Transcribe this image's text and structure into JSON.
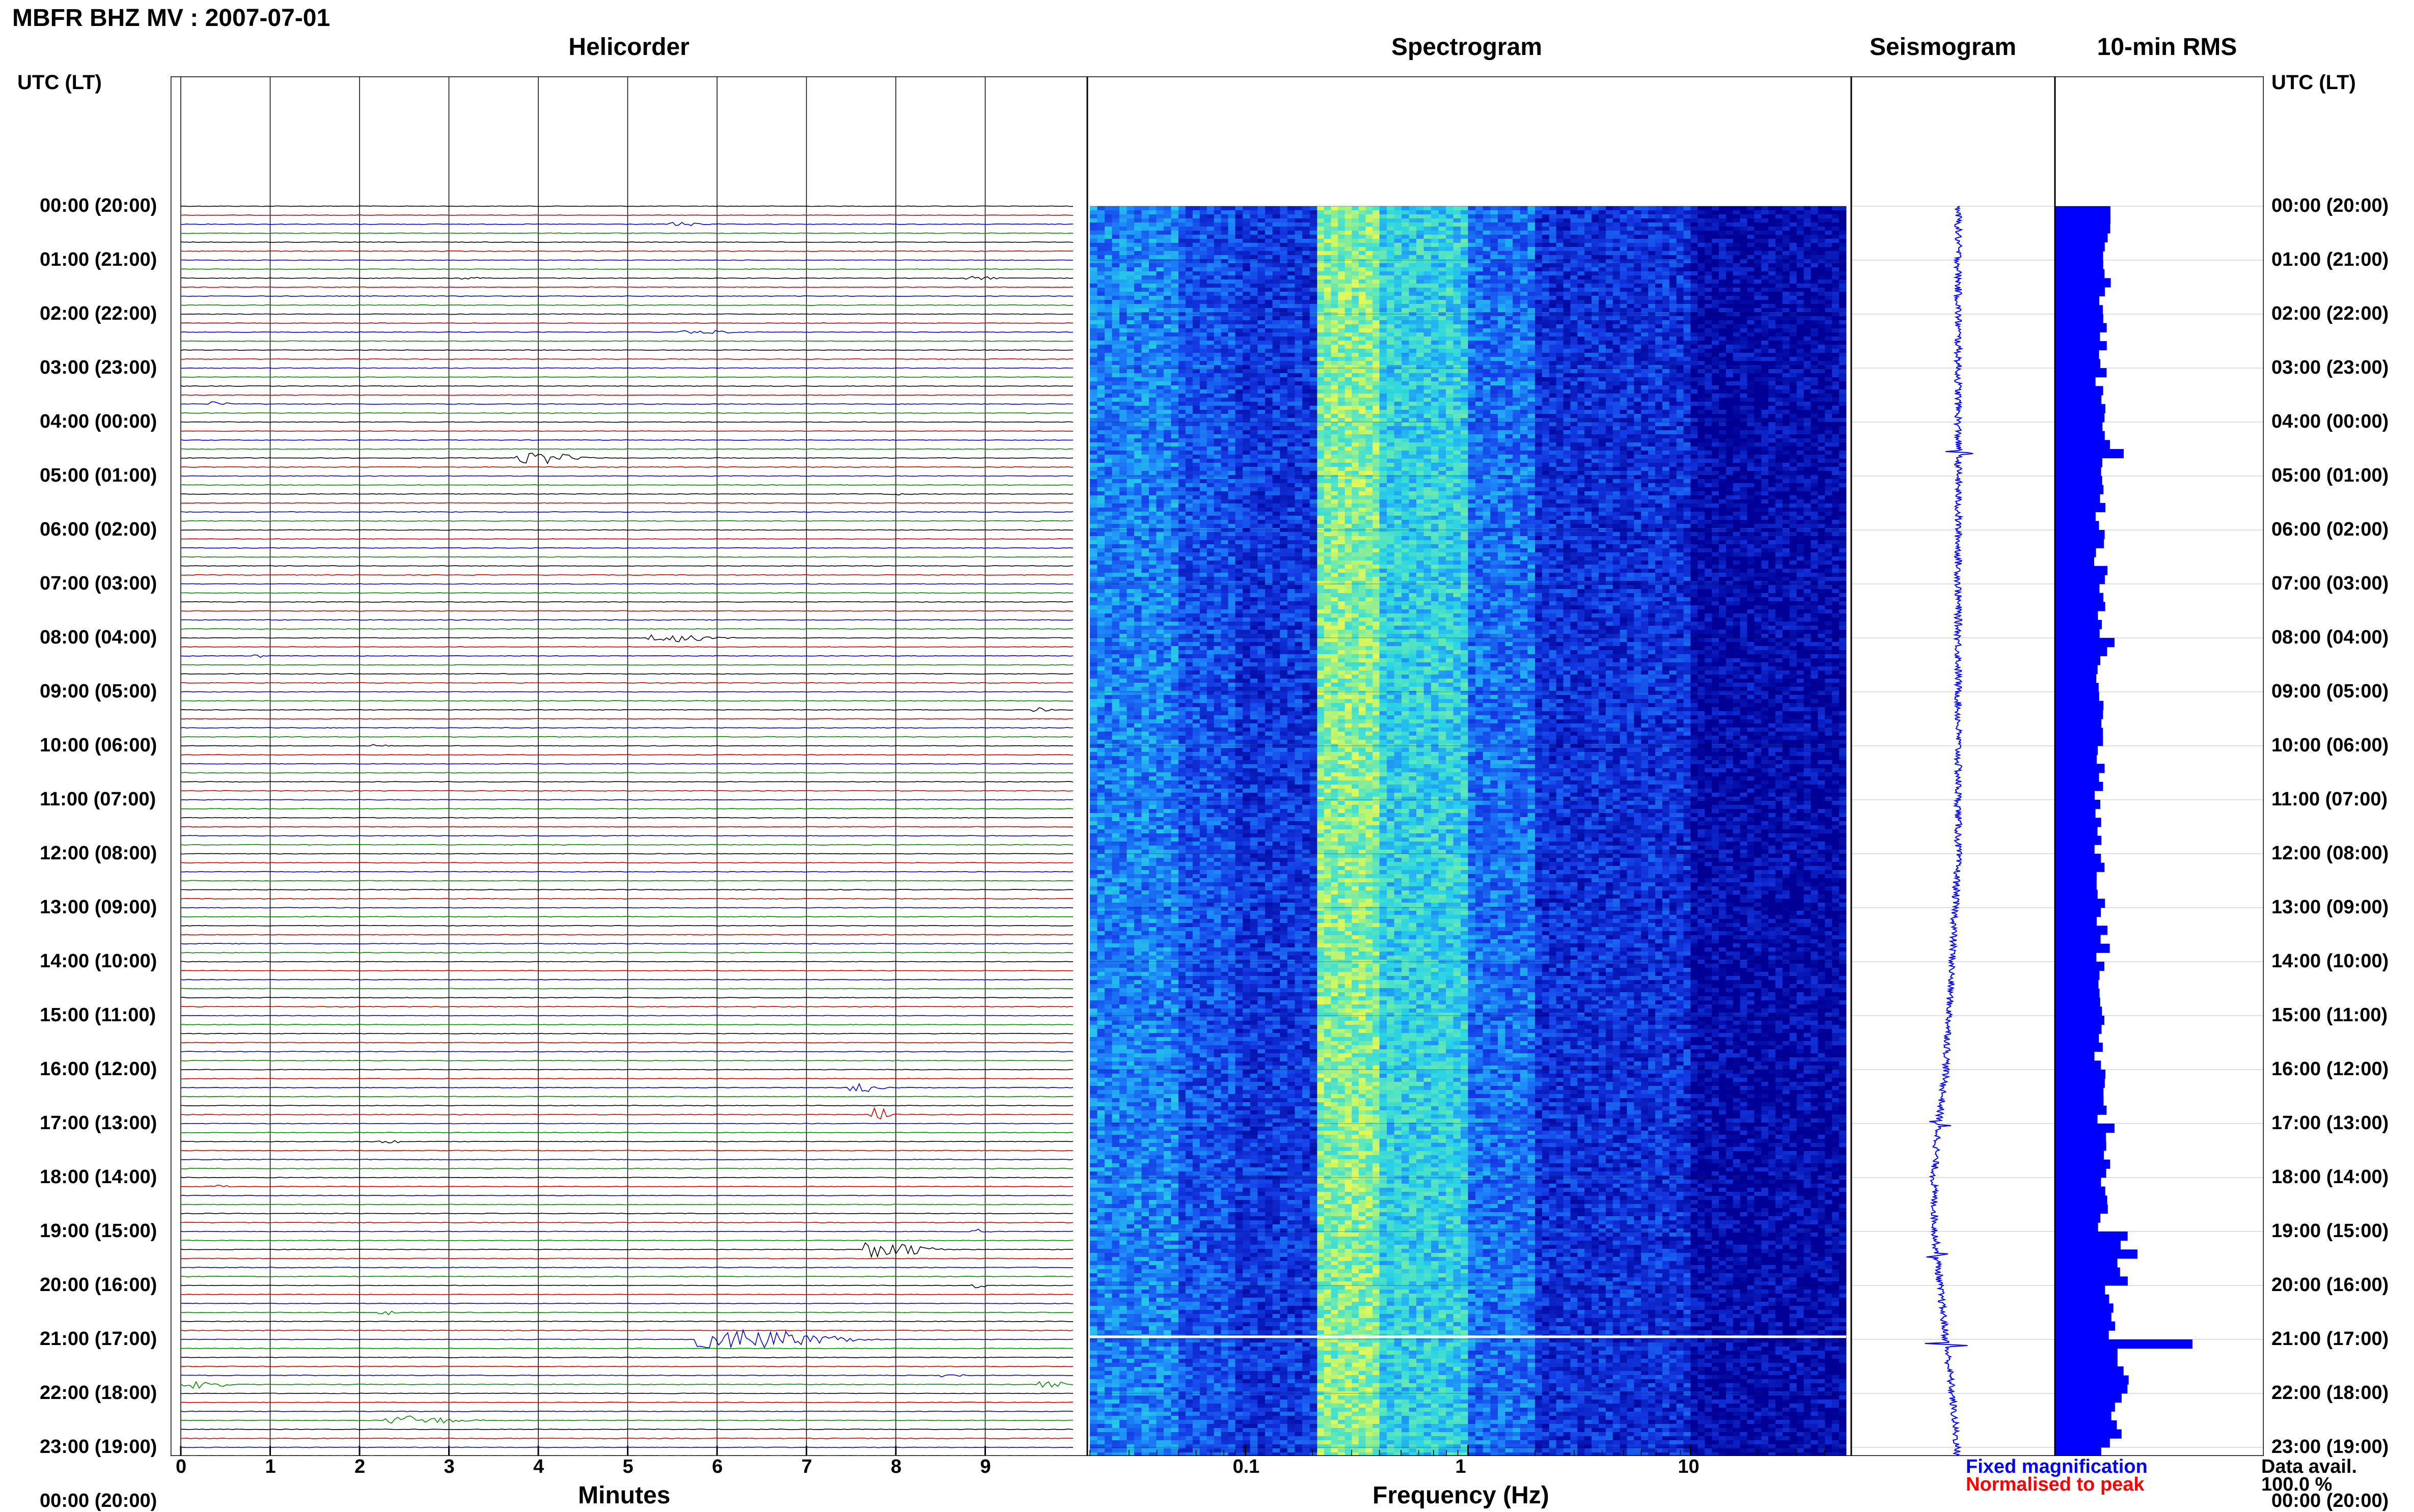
{
  "page_title": "MBFR BHZ MV : 2007-07-01",
  "utc_header_left": "UTC (LT)",
  "utc_header_right": "UTC (LT)",
  "time_labels": [
    "00:00 (20:00)",
    "01:00 (21:00)",
    "02:00 (22:00)",
    "03:00 (23:00)",
    "04:00 (00:00)",
    "05:00 (01:00)",
    "06:00 (02:00)",
    "07:00 (03:00)",
    "08:00 (04:00)",
    "09:00 (05:00)",
    "10:00 (06:00)",
    "11:00 (07:00)",
    "12:00 (08:00)",
    "13:00 (09:00)",
    "14:00 (10:00)",
    "15:00 (11:00)",
    "16:00 (12:00)",
    "17:00 (13:00)",
    "18:00 (14:00)",
    "19:00 (15:00)",
    "20:00 (16:00)",
    "21:00 (17:00)",
    "22:00 (18:00)",
    "23:00 (19:00)",
    "00:00 (20:00)"
  ],
  "legend": {
    "fixed": "Fixed magnification",
    "normalised": "Normalised to peak",
    "fixed_color": "#0000ff",
    "normalised_color": "#ff0000"
  },
  "data_avail": {
    "label": "Data avail.",
    "value": "100.0 %"
  },
  "chart_data": [
    {
      "type": "line",
      "title": "Helicorder",
      "xlabel": "Minutes",
      "ylabel": "UTC (LT)",
      "xlim": [
        0,
        10
      ],
      "x_ticks": [
        "0",
        "1",
        "2",
        "3",
        "4",
        "5",
        "6",
        "7",
        "8",
        "9"
      ],
      "rows_per_hour": 6,
      "trace_colors": [
        "#000000",
        "#cc0000",
        "#0000cc",
        "#008800"
      ],
      "events": [
        {
          "hour": 0.4,
          "minute": 5.6,
          "amplitude": 5,
          "width": 0.5
        },
        {
          "hour": 1.3,
          "minute": 3.2,
          "amplitude": 4,
          "width": 0.4
        },
        {
          "hour": 1.4,
          "minute": 8.9,
          "amplitude": 5,
          "width": 0.5
        },
        {
          "hour": 2.3,
          "minute": 5.8,
          "amplitude": 4,
          "width": 0.9
        },
        {
          "hour": 3.6,
          "minute": 0.4,
          "amplitude": 6,
          "width": 0.25
        },
        {
          "hour": 4.6,
          "minute": 4.0,
          "amplitude": 12,
          "width": 0.9
        },
        {
          "hour": 5.4,
          "minute": 8.0,
          "amplitude": 4,
          "width": 0.3
        },
        {
          "hour": 8.0,
          "minute": 5.5,
          "amplitude": 8,
          "width": 1.0
        },
        {
          "hour": 8.3,
          "minute": 0.9,
          "amplitude": 3,
          "width": 0.3
        },
        {
          "hour": 9.4,
          "minute": 9.6,
          "amplitude": 6,
          "width": 0.3
        },
        {
          "hour": 10.0,
          "minute": 2.2,
          "amplitude": 3,
          "width": 0.3
        },
        {
          "hour": 16.3,
          "minute": 7.6,
          "amplitude": 10,
          "width": 0.45
        },
        {
          "hour": 16.8,
          "minute": 7.8,
          "amplitude": 13,
          "width": 0.35
        },
        {
          "hour": 17.4,
          "minute": 2.3,
          "amplitude": 6,
          "width": 0.3
        },
        {
          "hour": 18.2,
          "minute": 0.4,
          "amplitude": 3,
          "width": 0.3
        },
        {
          "hour": 19.0,
          "minute": 8.9,
          "amplitude": 6,
          "width": 0.25
        },
        {
          "hour": 19.3,
          "minute": 7.9,
          "amplitude": 18,
          "width": 0.9
        },
        {
          "hour": 20.0,
          "minute": 8.9,
          "amplitude": 6,
          "width": 0.25
        },
        {
          "hour": 20.5,
          "minute": 2.3,
          "amplitude": 7,
          "width": 0.3
        },
        {
          "hour": 21.0,
          "minute": 6.3,
          "amplitude": 22,
          "width": 1.8
        },
        {
          "hour": 21.0,
          "minute": 7.4,
          "amplitude": 6,
          "width": 0.3
        },
        {
          "hour": 21.7,
          "minute": 8.6,
          "amplitude": 6,
          "width": 0.3
        },
        {
          "hour": 21.8,
          "minute": 9.7,
          "amplitude": 8,
          "width": 0.45
        },
        {
          "hour": 21.9,
          "minute": 0.2,
          "amplitude": 9,
          "width": 0.6
        },
        {
          "hour": 22.5,
          "minute": 2.6,
          "amplitude": 9,
          "width": 1.1
        },
        {
          "hour": 23.3,
          "minute": 7.4,
          "amplitude": 10,
          "width": 0.3
        }
      ]
    },
    {
      "type": "heatmap",
      "title": "Spectrogram",
      "xlabel": "Frequency (Hz)",
      "ylabel": "UTC (LT)",
      "x_scale": "log",
      "xlim": [
        0.02,
        50
      ],
      "x_ticks": [
        "0.1",
        "1",
        "10"
      ],
      "bands": [
        {
          "from": 0.02,
          "to": 0.05,
          "level": 0.42
        },
        {
          "from": 0.05,
          "to": 0.09,
          "level": 0.3
        },
        {
          "from": 0.09,
          "to": 0.21,
          "level": 0.22
        },
        {
          "from": 0.21,
          "to": 0.4,
          "level": 0.82
        },
        {
          "from": 0.4,
          "to": 1.0,
          "level": 0.62
        },
        {
          "from": 1.0,
          "to": 2.0,
          "level": 0.38
        },
        {
          "from": 2.0,
          "to": 10.0,
          "level": 0.2
        },
        {
          "from": 10.0,
          "to": 50.0,
          "level": 0.05
        }
      ],
      "gap_hour": 20.95
    },
    {
      "type": "line",
      "title": "Seismogram",
      "ylabel": "UTC (LT)",
      "trend_hours": [
        0,
        4,
        8,
        12,
        16,
        17,
        18,
        19,
        20,
        21,
        22,
        23,
        24
      ],
      "trend_offset": [
        0.0,
        0.0,
        0.0,
        0.0,
        -0.2,
        -0.32,
        -0.4,
        -0.38,
        -0.3,
        -0.2,
        -0.1,
        -0.02,
        0.0
      ],
      "spikes": [
        {
          "hour": 4.55,
          "amplitude": 0.7
        },
        {
          "hour": 17.0,
          "amplitude": 0.5
        },
        {
          "hour": 19.45,
          "amplitude": 0.5
        },
        {
          "hour": 21.1,
          "amplitude": 0.8
        }
      ]
    },
    {
      "type": "bar",
      "title": "10-min RMS",
      "ylabel": "UTC (LT)",
      "hour_values": [
        1.2,
        1.1,
        1.0,
        1.0,
        1.1,
        1.0,
        1.0,
        1.0,
        1.0,
        1.0,
        1.0,
        1.0,
        1.05,
        1.05,
        1.0,
        1.0,
        1.05,
        1.2,
        1.1,
        1.4,
        1.15,
        1.4,
        1.3,
        1.1
      ],
      "spikes": [
        {
          "hour": 4.55,
          "value": 1.5
        },
        {
          "hour": 7.95,
          "value": 1.3
        },
        {
          "hour": 16.95,
          "value": 1.3
        },
        {
          "hour": 19.4,
          "value": 1.8
        },
        {
          "hour": 21.05,
          "value": 3.0
        },
        {
          "hour": 22.5,
          "value": 1.35
        }
      ],
      "xlim": [
        0,
        3.4
      ]
    }
  ]
}
